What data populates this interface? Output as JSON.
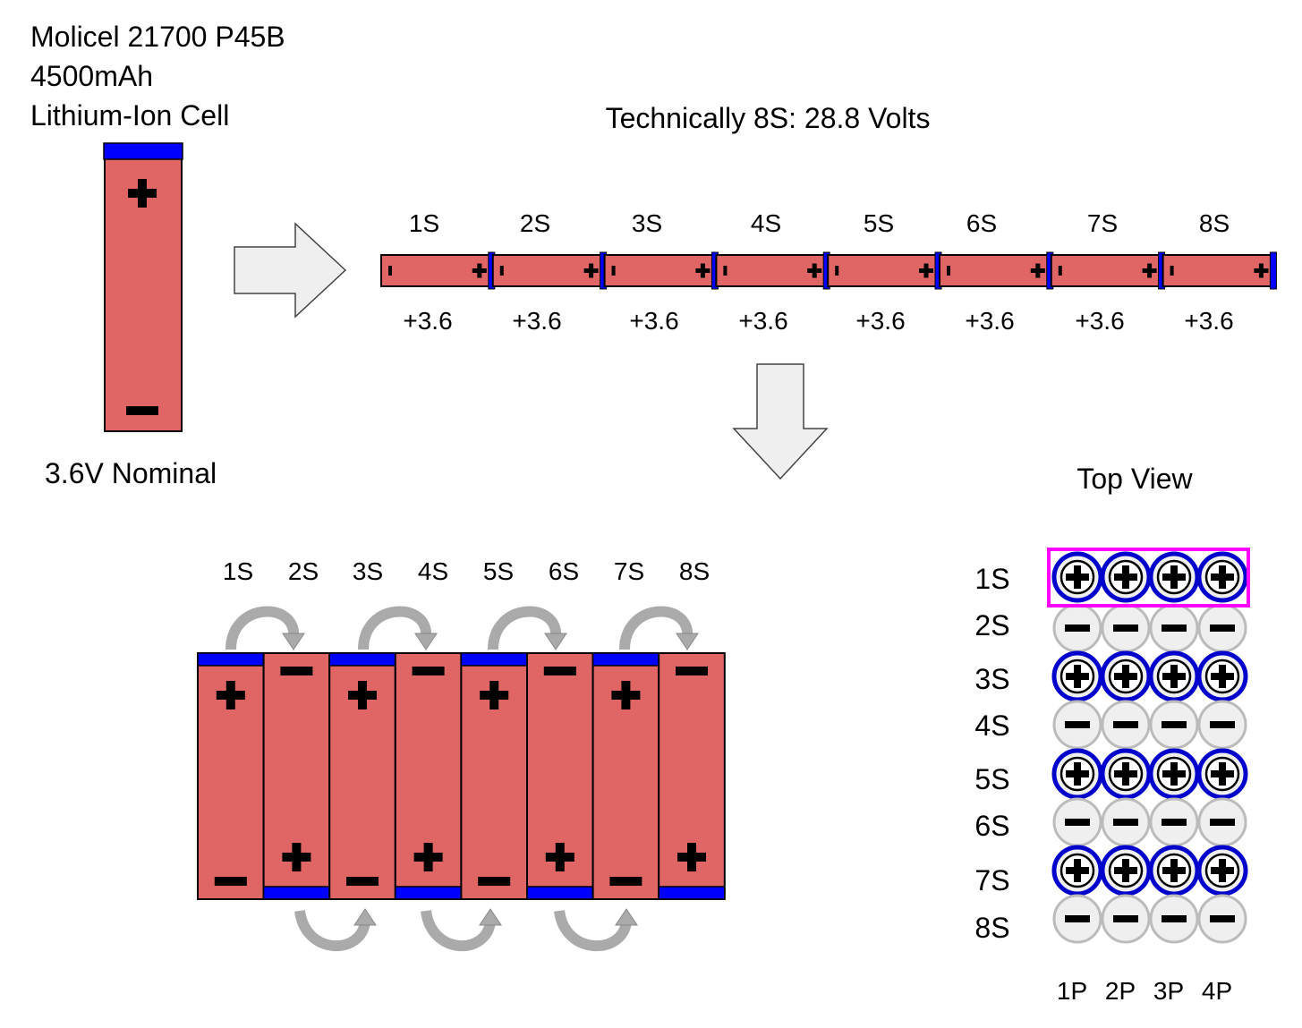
{
  "cell": {
    "title_lines": [
      "Molicel 21700 P45B",
      "4500mAh",
      "Lithium-Ion Cell"
    ],
    "nominal": "3.6V Nominal"
  },
  "series_strip": {
    "title": "Technically 8S: 28.8 Volts",
    "labels": [
      "1S",
      "2S",
      "3S",
      "4S",
      "5S",
      "6S",
      "7S",
      "8S"
    ],
    "voltages": [
      "+3.6",
      "+3.6",
      "+3.6",
      "+3.6",
      "+3.6",
      "+3.6",
      "+3.6",
      "+3.6"
    ]
  },
  "pack_side": {
    "labels": [
      "1S",
      "2S",
      "3S",
      "4S",
      "5S",
      "6S",
      "7S",
      "8S"
    ]
  },
  "top_view": {
    "title": "Top View",
    "row_labels": [
      "1S",
      "2S",
      "3S",
      "4S",
      "5S",
      "6S",
      "7S",
      "8S"
    ],
    "col_labels": [
      "1P",
      "2P",
      "3P",
      "4P"
    ],
    "highlighted_row": "1S"
  },
  "colors": {
    "cell_body": "#e06666",
    "terminal": "#0000ff",
    "highlight": "#ff00ff",
    "arrow_fill": "#efefef",
    "curved_arrow": "#aaaaaa"
  }
}
